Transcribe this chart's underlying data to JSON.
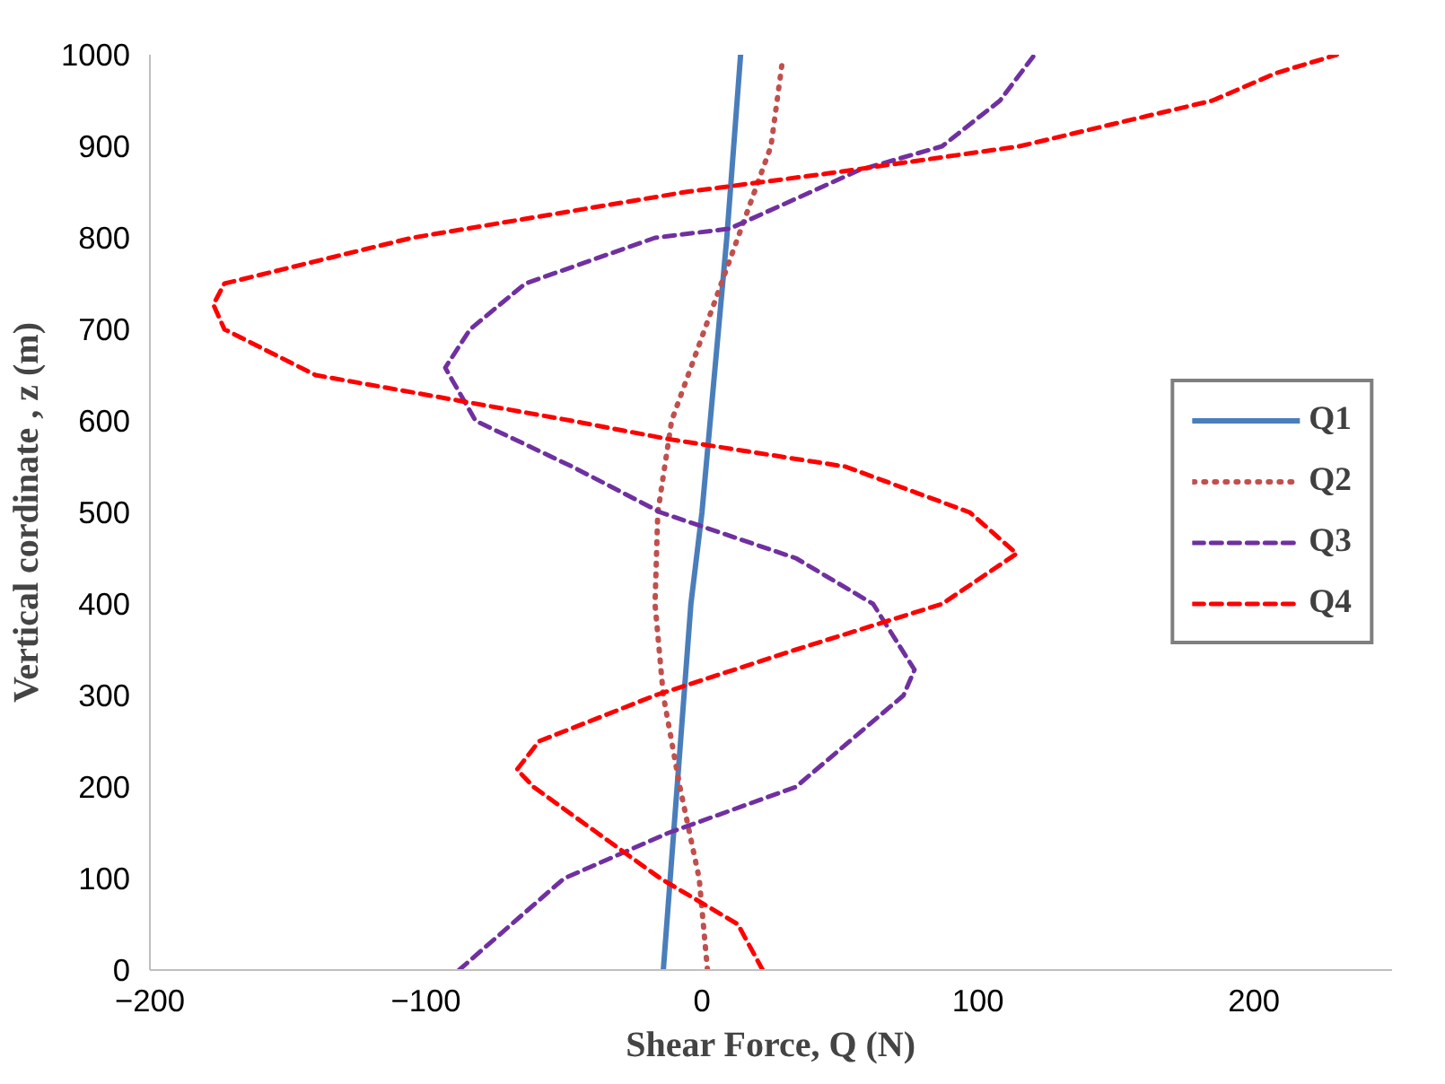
{
  "chart_data": {
    "type": "line",
    "xlabel": "Shear Force, Q (N)",
    "ylabel": "Vertical cordinate , z (m)",
    "xlim": [
      -200,
      250
    ],
    "xticks": [
      -200,
      -100,
      0,
      100,
      200
    ],
    "ylim": [
      0,
      1000
    ],
    "yticks": [
      0,
      100,
      200,
      300,
      400,
      500,
      600,
      700,
      800,
      900,
      1000
    ],
    "grid": false,
    "legend": "right",
    "marker": "none",
    "series": [
      {
        "name": "Q1",
        "color": "#4a7ebb",
        "line_style": "solid",
        "x": [
          -14,
          -9,
          -4,
          0,
          3,
          9,
          14
        ],
        "values": [
          0,
          200,
          400,
          500,
          600,
          800,
          1000
        ]
      },
      {
        "name": "Q2",
        "color": "#c0504d",
        "line_style": "dotted",
        "x": [
          2,
          -1,
          -8,
          -14,
          -17,
          -16,
          -11,
          1,
          13,
          25,
          29
        ],
        "values": [
          0,
          100,
          200,
          300,
          400,
          500,
          600,
          700,
          800,
          900,
          990
        ]
      },
      {
        "name": "Q3",
        "color": "#7030a0",
        "line_style": "dashed",
        "x": [
          -88,
          -50,
          -12,
          34,
          73,
          77,
          62,
          34,
          -15,
          -47,
          -82,
          -93,
          -84,
          -64,
          -17,
          10,
          57,
          87,
          108,
          120
        ],
        "values": [
          0,
          100,
          150,
          200,
          300,
          328,
          400,
          450,
          500,
          550,
          600,
          658,
          700,
          750,
          800,
          810,
          874,
          900,
          950,
          998
        ]
      },
      {
        "name": "Q4",
        "color": "#ff0000",
        "line_style": "dashed",
        "x": [
          22,
          13,
          -15,
          -38,
          -61,
          -67,
          -59,
          -17,
          34,
          87,
          114,
          97,
          52,
          -12,
          -47,
          -140,
          -173,
          -177,
          -173,
          -105,
          -6,
          45,
          115,
          185,
          208,
          230
        ],
        "values": [
          0,
          50,
          100,
          150,
          200,
          219,
          250,
          300,
          350,
          400,
          455,
          500,
          550,
          580,
          600,
          650,
          700,
          727,
          750,
          800,
          850,
          870,
          900,
          950,
          980,
          1000
        ]
      }
    ]
  }
}
